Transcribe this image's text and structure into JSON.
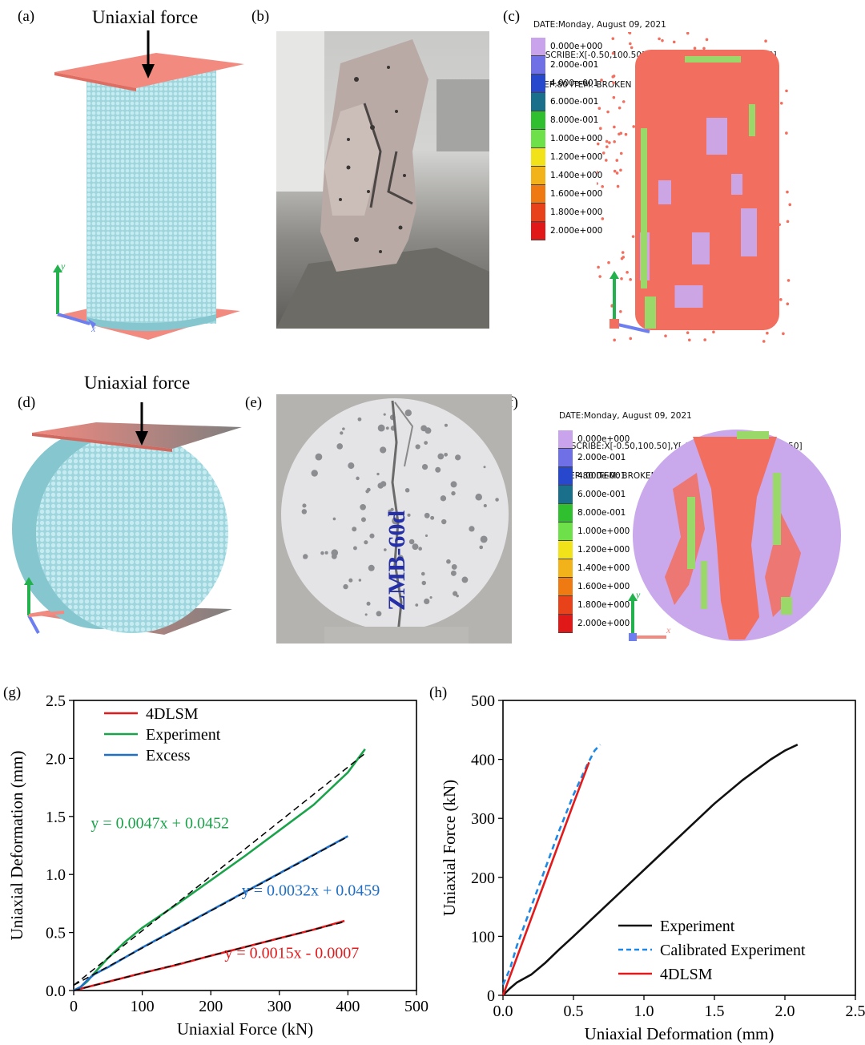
{
  "panels": {
    "a": {
      "label": "(a)",
      "force_label": "Uniaxial force"
    },
    "b": {
      "label": "(b)"
    },
    "c": {
      "label": "(c)",
      "header": [
        "DATE:Monday, August 09, 2021",
        "DESCRIBE:X[-0.50,100.50],Y[-0.50,100.50],Z[-0.50,10.50]",
        "STEP:80 ITEM: BROKEN"
      ]
    },
    "d": {
      "label": "(d)",
      "force_label": "Uniaxial force"
    },
    "e": {
      "label": "(e)",
      "specimen_marking": "ZMB-60d"
    },
    "f": {
      "label": "(f)",
      "header": [
        "DATE:Monday, August 09, 2021",
        "DESCRIBE:X[-0.50,100.50],Y[-0.50,100.50],Z[-0.50,10.50]",
        "STEP:80 ITEM: BROKEN"
      ]
    },
    "g": {
      "label": "(g)"
    },
    "h": {
      "label": "(h)"
    }
  },
  "axis_glyphs": {
    "y": "y",
    "x": "x"
  },
  "color_scale": {
    "levels": [
      "0.000e+000",
      "2.000e-001",
      "4.000e-001",
      "6.000e-001",
      "8.000e-001",
      "1.000e+000",
      "1.200e+000",
      "1.400e+000",
      "1.600e+000",
      "1.800e+000",
      "2.000e+000"
    ],
    "colors": [
      "#c9a4ec",
      "#6f6fe6",
      "#2747cc",
      "#1a6f8a",
      "#2fbf2f",
      "#6ee04a",
      "#f2e21a",
      "#f2b21a",
      "#ef7a12",
      "#e8421a",
      "#e01818"
    ]
  },
  "colors": {
    "plate": "#f38a80",
    "specimen": "#a9dde4",
    "broken": "#f26e5e",
    "intact": "#c9a8ec",
    "crack": "#9ad86a",
    "axis_y": "#22b14c",
    "axis_x": "#6d7ff0"
  },
  "chart_data": [
    {
      "type": "line",
      "panel": "g",
      "xlabel": "Uniaxial Force (kN)",
      "ylabel": "Uniaxial Deformation (mm)",
      "xlim": [
        0,
        500
      ],
      "ylim": [
        0,
        2.5
      ],
      "xticks": [
        "0",
        "100",
        "200",
        "300",
        "400",
        "500"
      ],
      "yticks": [
        "0.0",
        "0.5",
        "1.0",
        "1.5",
        "2.0",
        "2.5"
      ],
      "legend_position": "top-left",
      "series": [
        {
          "name": "4DLSM",
          "color": "#e31a1c",
          "x": [
            0,
            50,
            100,
            150,
            200,
            250,
            300,
            350,
            395
          ],
          "y": [
            0,
            0.075,
            0.15,
            0.22,
            0.3,
            0.375,
            0.45,
            0.525,
            0.6
          ]
        },
        {
          "name": "Experiment",
          "color": "#1aa34a",
          "x": [
            0,
            10,
            20,
            30,
            50,
            75,
            100,
            150,
            200,
            250,
            300,
            350,
            400,
            425
          ],
          "y": [
            0,
            0.03,
            0.08,
            0.15,
            0.28,
            0.42,
            0.54,
            0.74,
            0.95,
            1.16,
            1.38,
            1.6,
            1.88,
            2.08
          ]
        },
        {
          "name": "Excess",
          "color": "#1f6fc6",
          "x": [
            0,
            10,
            20,
            30,
            50,
            100,
            150,
            200,
            250,
            300,
            350,
            400
          ],
          "y": [
            0,
            0.03,
            0.09,
            0.14,
            0.2,
            0.37,
            0.53,
            0.69,
            0.85,
            1.01,
            1.17,
            1.33
          ]
        }
      ],
      "fits": [
        {
          "x": [
            0,
            425
          ],
          "y": [
            0.0452,
            2.043
          ]
        },
        {
          "x": [
            0,
            400
          ],
          "y": [
            0.0459,
            1.3259
          ]
        },
        {
          "x": [
            0,
            395
          ],
          "y": [
            -0.0007,
            0.5918
          ]
        }
      ],
      "annotations": [
        {
          "text": "y = 0.0047x + 0.0452",
          "color": "#1aa34a",
          "x": 25,
          "y": 1.4
        },
        {
          "text": "y = 0.0032x + 0.0459",
          "color": "#1f6fc6",
          "x": 245,
          "y": 0.82
        },
        {
          "text": "y = 0.0015x - 0.0007",
          "color": "#e31a1c",
          "x": 220,
          "y": 0.28
        }
      ]
    },
    {
      "type": "line",
      "panel": "h",
      "xlabel": "Uniaxial Deformation (mm)",
      "ylabel": "Uniaxial Force (kN)",
      "xlim": [
        0,
        2.5
      ],
      "ylim": [
        0,
        500
      ],
      "xticks": [
        "0.0",
        "0.5",
        "1.0",
        "1.5",
        "2.0",
        "2.5"
      ],
      "yticks": [
        "0",
        "100",
        "200",
        "300",
        "400",
        "500"
      ],
      "legend_position": "bottom-right",
      "series": [
        {
          "name": "Experiment",
          "color": "#111111",
          "dash": "none",
          "x": [
            0,
            0.05,
            0.1,
            0.2,
            0.3,
            0.4,
            0.5,
            0.7,
            0.9,
            1.1,
            1.3,
            1.5,
            1.7,
            1.9,
            2.0,
            2.09
          ],
          "y": [
            0,
            12,
            22,
            35,
            55,
            78,
            100,
            145,
            190,
            235,
            280,
            325,
            365,
            400,
            415,
            425
          ]
        },
        {
          "name": "Calibrated Experiment",
          "color": "#1e88e5",
          "dash": "7,5",
          "x": [
            0,
            0.05,
            0.1,
            0.2,
            0.3,
            0.4,
            0.5,
            0.6,
            0.65,
            0.69
          ],
          "y": [
            18,
            45,
            85,
            150,
            215,
            280,
            340,
            392,
            415,
            425
          ]
        },
        {
          "name": "4DLSM",
          "color": "#e31a1c",
          "dash": "none",
          "x": [
            0,
            0.1,
            0.2,
            0.3,
            0.4,
            0.5,
            0.61
          ],
          "y": [
            0,
            65,
            130,
            195,
            260,
            325,
            395
          ]
        }
      ]
    }
  ]
}
